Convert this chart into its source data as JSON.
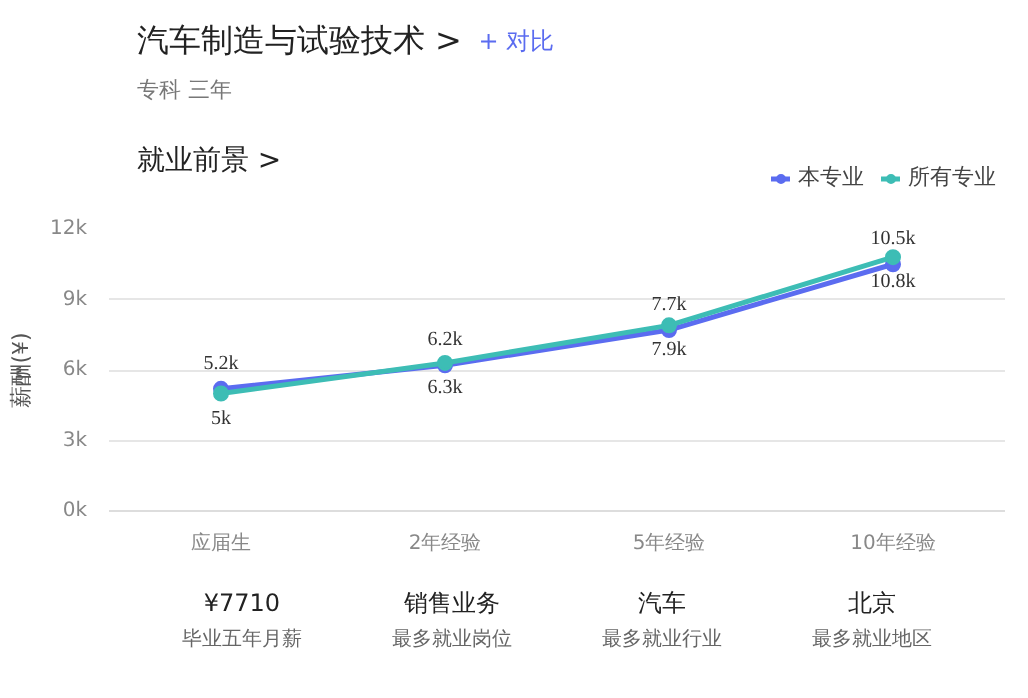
{
  "chart_data": {
    "type": "line",
    "title": "汽车制造与试验技术 >",
    "subtitle": "专科 三年",
    "ylabel": "薪酬(¥)",
    "annotations": [
      "+ 对比",
      "就业前景 >",
      "¥7710",
      "毕业五年月薪",
      "销售业务",
      "最多就业岗位",
      "汽车",
      "最多就业行业",
      "北京",
      "最多就业地区"
    ],
    "categories": [
      "应届生",
      "2年经验",
      "5年经验",
      "10年经验"
    ],
    "series": [
      {
        "name": "本专业",
        "color": "#5b6cf0",
        "values": [
          5200,
          6200,
          7700,
          10500
        ],
        "value_labels": [
          "5.2k",
          "6.2k",
          "7.7k",
          "10.5k"
        ]
      },
      {
        "name": "所有专业",
        "color": "#3dbdb5",
        "values": [
          5000,
          6300,
          7900,
          10800
        ],
        "value_labels": [
          "5k",
          "6.3k",
          "7.9k",
          "10.8k"
        ]
      }
    ],
    "ylim": [
      0,
      12000
    ],
    "yticks": [
      {
        "value": 0,
        "label": "0k"
      },
      {
        "value": 3000,
        "label": "3k"
      },
      {
        "value": 6000,
        "label": "6k"
      },
      {
        "value": 9000,
        "label": "9k"
      },
      {
        "value": 12000,
        "label": "12k"
      }
    ],
    "grid": "y",
    "legend": "top right",
    "marker": "circle",
    "line_style": "solid"
  }
}
